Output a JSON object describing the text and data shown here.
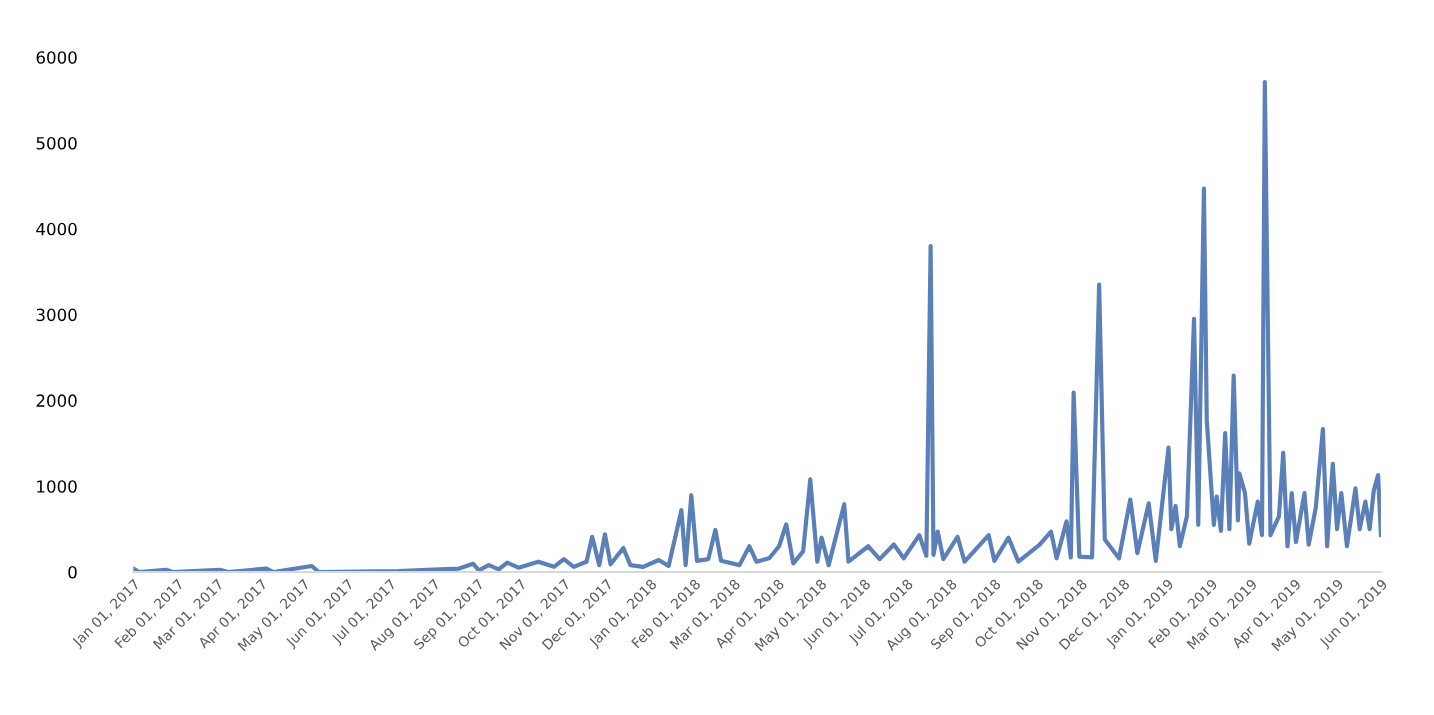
{
  "chart_data": {
    "type": "line",
    "x": [
      "2017-01-01",
      "2017-01-05",
      "2017-01-24",
      "2017-01-29",
      "2017-03-03",
      "2017-03-09",
      "2017-04-05",
      "2017-04-10",
      "2017-05-07",
      "2017-05-12",
      "2017-07-07",
      "2017-07-28",
      "2017-08-19",
      "2017-08-29",
      "2017-09-02",
      "2017-09-09",
      "2017-09-16",
      "2017-09-22",
      "2017-09-30",
      "2017-10-14",
      "2017-10-25",
      "2017-11-01",
      "2017-11-08",
      "2017-11-17",
      "2017-11-21",
      "2017-11-26",
      "2017-11-30",
      "2017-12-04",
      "2017-12-13",
      "2017-12-18",
      "2017-12-27",
      "2018-01-07",
      "2018-01-14",
      "2018-01-23",
      "2018-01-26",
      "2018-01-30",
      "2018-02-03",
      "2018-02-11",
      "2018-02-16",
      "2018-02-20",
      "2018-03-05",
      "2018-03-12",
      "2018-03-17",
      "2018-03-26",
      "2018-04-02",
      "2018-04-07",
      "2018-04-12",
      "2018-04-19",
      "2018-04-24",
      "2018-04-29",
      "2018-05-02",
      "2018-05-07",
      "2018-05-18",
      "2018-05-21",
      "2018-06-04",
      "2018-06-12",
      "2018-06-22",
      "2018-06-29",
      "2018-07-10",
      "2018-07-15",
      "2018-07-18",
      "2018-07-20",
      "2018-07-23",
      "2018-07-27",
      "2018-08-06",
      "2018-08-11",
      "2018-08-28",
      "2018-09-01",
      "2018-09-11",
      "2018-09-18",
      "2018-10-03",
      "2018-10-11",
      "2018-10-15",
      "2018-10-22",
      "2018-10-25",
      "2018-10-27",
      "2018-10-31",
      "2018-11-09",
      "2018-11-14",
      "2018-11-18",
      "2018-11-28",
      "2018-12-06",
      "2018-12-11",
      "2018-12-19",
      "2018-12-24",
      "2019-01-02",
      "2019-01-04",
      "2019-01-07",
      "2019-01-10",
      "2019-01-15",
      "2019-01-20",
      "2019-01-23",
      "2019-01-27",
      "2019-01-29",
      "2019-02-03",
      "2019-02-05",
      "2019-02-08",
      "2019-02-11",
      "2019-02-14",
      "2019-02-17",
      "2019-02-20",
      "2019-02-21",
      "2019-02-25",
      "2019-02-28",
      "2019-03-06",
      "2019-03-09",
      "2019-03-11",
      "2019-03-15",
      "2019-03-21",
      "2019-03-24",
      "2019-03-27",
      "2019-03-30",
      "2019-04-02",
      "2019-04-08",
      "2019-04-11",
      "2019-04-16",
      "2019-04-21",
      "2019-04-24",
      "2019-04-28",
      "2019-05-01",
      "2019-05-04",
      "2019-05-08",
      "2019-05-14",
      "2019-05-17",
      "2019-05-21",
      "2019-05-24",
      "2019-05-27",
      "2019-05-30",
      "2019-06-01"
    ],
    "series": [
      {
        "color": "#5b7fb8",
        "values": [
          40,
          0,
          25,
          0,
          25,
          0,
          40,
          0,
          70,
          0,
          10,
          25,
          40,
          95,
          20,
          80,
          30,
          110,
          50,
          120,
          60,
          150,
          60,
          120,
          410,
          80,
          440,
          90,
          280,
          80,
          60,
          140,
          70,
          720,
          80,
          895,
          130,
          150,
          490,
          130,
          80,
          300,
          120,
          160,
          300,
          555,
          100,
          240,
          1080,
          120,
          400,
          80,
          790,
          120,
          300,
          150,
          320,
          160,
          430,
          190,
          3800,
          200,
          470,
          150,
          410,
          120,
          430,
          130,
          400,
          120,
          320,
          470,
          160,
          590,
          170,
          2090,
          180,
          170,
          3350,
          380,
          160,
          845,
          220,
          800,
          130,
          1450,
          500,
          770,
          300,
          650,
          2950,
          550,
          4470,
          1770,
          550,
          880,
          480,
          1620,
          500,
          2290,
          600,
          1150,
          920,
          330,
          820,
          430,
          5710,
          430,
          650,
          1390,
          300,
          920,
          350,
          920,
          320,
          750,
          1665,
          300,
          1260,
          500,
          920,
          300,
          975,
          500,
          820,
          500,
          955,
          1130,
          430
        ]
      }
    ],
    "xlim": [
      "2017-01-01",
      "2019-06-01"
    ],
    "xticks": [
      {
        "value": "2017-01-01",
        "label": "Jan 01, 2017"
      },
      {
        "value": "2017-02-01",
        "label": "Feb 01, 2017"
      },
      {
        "value": "2017-03-01",
        "label": "Mar 01, 2017"
      },
      {
        "value": "2017-04-01",
        "label": "Apr 01, 2017"
      },
      {
        "value": "2017-05-01",
        "label": "May 01, 2017"
      },
      {
        "value": "2017-06-01",
        "label": "Jun 01, 2017"
      },
      {
        "value": "2017-07-01",
        "label": "Jul 01, 2017"
      },
      {
        "value": "2017-08-01",
        "label": "Aug 01, 2017"
      },
      {
        "value": "2017-09-01",
        "label": "Sep 01, 2017"
      },
      {
        "value": "2017-10-01",
        "label": "Oct 01, 2017"
      },
      {
        "value": "2017-11-01",
        "label": "Nov 01, 2017"
      },
      {
        "value": "2017-12-01",
        "label": "Dec 01, 2017"
      },
      {
        "value": "2018-01-01",
        "label": "Jan 01, 2018"
      },
      {
        "value": "2018-02-01",
        "label": "Feb 01, 2018"
      },
      {
        "value": "2018-03-01",
        "label": "Mar 01, 2018"
      },
      {
        "value": "2018-04-01",
        "label": "Apr 01, 2018"
      },
      {
        "value": "2018-05-01",
        "label": "May 01, 2018"
      },
      {
        "value": "2018-06-01",
        "label": "Jun 01, 2018"
      },
      {
        "value": "2018-07-01",
        "label": "Jul 01, 2018"
      },
      {
        "value": "2018-08-01",
        "label": "Aug 01, 2018"
      },
      {
        "value": "2018-09-01",
        "label": "Sep 01, 2018"
      },
      {
        "value": "2018-10-01",
        "label": "Oct 01, 2018"
      },
      {
        "value": "2018-11-01",
        "label": "Nov 01, 2018"
      },
      {
        "value": "2018-12-01",
        "label": "Dec 01, 2018"
      },
      {
        "value": "2019-01-01",
        "label": "Jan 01, 2019"
      },
      {
        "value": "2019-02-01",
        "label": "Feb 01, 2019"
      },
      {
        "value": "2019-03-01",
        "label": "Mar 01, 2019"
      },
      {
        "value": "2019-04-01",
        "label": "Apr 01, 2019"
      },
      {
        "value": "2019-05-01",
        "label": "May 01, 2019"
      },
      {
        "value": "2019-06-01",
        "label": "Jun 01, 2019"
      }
    ],
    "ylim": [
      0,
      6000
    ],
    "yticks": [
      0,
      1000,
      2000,
      3000,
      4000,
      5000,
      6000
    ],
    "grid": false,
    "legend": false,
    "marker": "none",
    "line_style": "solid"
  }
}
